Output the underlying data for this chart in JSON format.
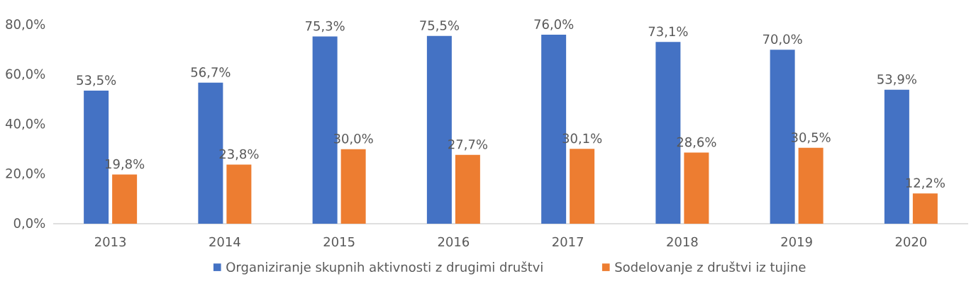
{
  "chart_data": {
    "type": "bar",
    "categories": [
      "2013",
      "2014",
      "2015",
      "2016",
      "2017",
      "2018",
      "2019",
      "2020"
    ],
    "series": [
      {
        "name": "Organiziranje skupnih aktivnosti z drugimi društvi",
        "color": "#4472c4",
        "values": [
          53.5,
          56.7,
          75.3,
          75.5,
          76.0,
          73.1,
          70.0,
          53.9
        ],
        "value_labels": [
          "53,5%",
          "56,7%",
          "75,3%",
          "75,5%",
          "76,0%",
          "73,1%",
          "70,0%",
          "53,9%"
        ]
      },
      {
        "name": "Sodelovanje z društvi iz tujine",
        "color": "#ed7d31",
        "values": [
          19.8,
          23.8,
          30.0,
          27.7,
          30.1,
          28.6,
          30.5,
          12.2
        ],
        "value_labels": [
          "19,8%",
          "23,8%",
          "30,0%",
          "27,7%",
          "30,1%",
          "28,6%",
          "30,5%",
          "12,2%"
        ]
      }
    ],
    "ylim": [
      0,
      80
    ],
    "yticks": [
      {
        "value": 0,
        "label": "0,0%"
      },
      {
        "value": 20,
        "label": "20,0%"
      },
      {
        "value": 40,
        "label": "40,0%"
      },
      {
        "value": 60,
        "label": "60,0%"
      },
      {
        "value": 80,
        "label": "80,0%"
      }
    ],
    "legend": "bottom"
  }
}
